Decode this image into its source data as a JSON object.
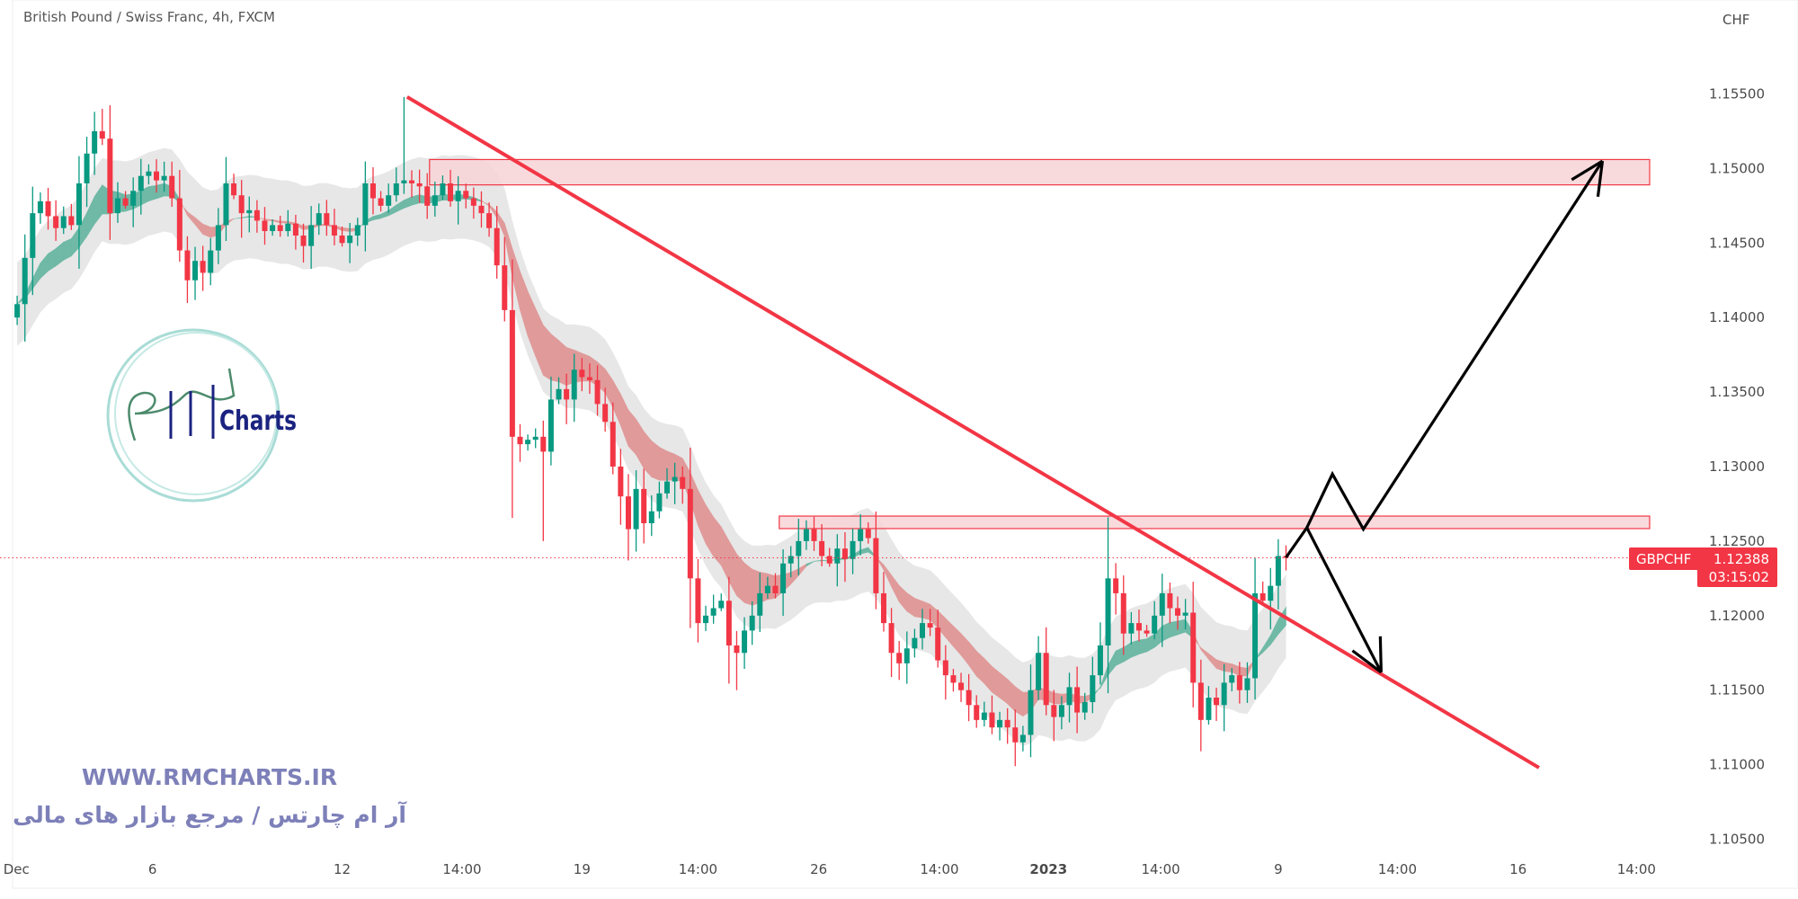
{
  "header": {
    "title": "British Pound / Swiss Franc, 4h, FXCM",
    "currency": "CHF"
  },
  "price_label": {
    "symbol": "GBPCHF",
    "price": "1.12388",
    "countdown": "03:15:02"
  },
  "watermark": {
    "logo_text": "RM Charts",
    "logo_word": "Charts",
    "website": "WWW.RMCHARTS.IR",
    "tagline": "آر ام چارتس / مرجع بازار های مالی"
  },
  "colors": {
    "up": "#089981",
    "down": "#f23645",
    "trendline": "#f23645",
    "zone_fill": "#f8d3d6",
    "zone_border": "#f23645",
    "arrows": "#000000",
    "ribbon_up": "#6fb9a6",
    "ribbon_down": "#e09a9a",
    "envelope": "#e3e3e3"
  },
  "chart_data": {
    "type": "candlestick",
    "title": "British Pound / Swiss Franc, 4h, FXCM",
    "ylabel": "CHF",
    "ylim": [
      1.1035,
      1.1595
    ],
    "y_ticks": [
      "1.15500",
      "1.15000",
      "1.14500",
      "1.14000",
      "1.13500",
      "1.13000",
      "1.12500",
      "1.12000",
      "1.11500",
      "1.11000",
      "1.10500"
    ],
    "x_ticks": [
      {
        "label": "Dec",
        "index": -0.1,
        "bold": false
      },
      {
        "label": "6",
        "index": 17.5,
        "bold": false
      },
      {
        "label": "12",
        "index": 42,
        "bold": false
      },
      {
        "label": "14:00",
        "index": 57.5,
        "bold": false
      },
      {
        "label": "19",
        "index": 73,
        "bold": false
      },
      {
        "label": "14:00",
        "index": 88,
        "bold": false
      },
      {
        "label": "26",
        "index": 103.6,
        "bold": false
      },
      {
        "label": "14:00",
        "index": 119.2,
        "bold": false
      },
      {
        "label": "2023",
        "index": 133.3,
        "bold": true
      },
      {
        "label": "14:00",
        "index": 147.8,
        "bold": false
      },
      {
        "label": "9",
        "index": 163,
        "bold": false
      },
      {
        "label": "14:00",
        "index": 178.4,
        "bold": false
      },
      {
        "label": "16",
        "index": 194,
        "bold": false
      },
      {
        "label": "14:00",
        "index": 209.3,
        "bold": false
      }
    ],
    "close": [
      1.1409,
      1.144,
      1.147,
      1.1478,
      1.1468,
      1.146,
      1.1468,
      1.1462,
      1.149,
      1.151,
      1.1525,
      1.152,
      1.147,
      1.148,
      1.1475,
      1.1485,
      1.1495,
      1.1498,
      1.1492,
      1.1495,
      1.148,
      1.1445,
      1.1425,
      1.1438,
      1.143,
      1.1445,
      1.1462,
      1.149,
      1.1482,
      1.147,
      1.1472,
      1.1465,
      1.1458,
      1.1462,
      1.1458,
      1.1463,
      1.1455,
      1.1448,
      1.1462,
      1.147,
      1.1462,
      1.1455,
      1.145,
      1.1455,
      1.1462,
      1.149,
      1.148,
      1.1475,
      1.1482,
      1.149,
      1.1492,
      1.149,
      1.1488,
      1.1475,
      1.1482,
      1.149,
      1.1478,
      1.1485,
      1.148,
      1.1475,
      1.147,
      1.146,
      1.1435,
      1.1405,
      1.132,
      1.1315,
      1.1318,
      1.132,
      1.131,
      1.1345,
      1.1352,
      1.1345,
      1.1365,
      1.136,
      1.1358,
      1.1342,
      1.133,
      1.13,
      1.128,
      1.1258,
      1.1285,
      1.1262,
      1.127,
      1.1282,
      1.129,
      1.1293,
      1.1285,
      1.1225,
      1.1195,
      1.12,
      1.1205,
      1.121,
      1.118,
      1.1175,
      1.119,
      1.12,
      1.1215,
      1.122,
      1.1215,
      1.1235,
      1.124,
      1.125,
      1.1258,
      1.125,
      1.124,
      1.1235,
      1.1245,
      1.1238,
      1.125,
      1.1258,
      1.1252,
      1.1215,
      1.1195,
      1.1175,
      1.1168,
      1.1178,
      1.1185,
      1.1195,
      1.1192,
      1.117,
      1.116,
      1.1155,
      1.115,
      1.114,
      1.113,
      1.1135,
      1.1125,
      1.113,
      1.1125,
      1.1115,
      1.112,
      1.115,
      1.1175,
      1.114,
      1.1132,
      1.114,
      1.1152,
      1.1135,
      1.1142,
      1.116,
      1.118,
      1.1225,
      1.1215,
      1.1188,
      1.1195,
      1.119,
      1.1188,
      1.12,
      1.1215,
      1.1205,
      1.12,
      1.1202,
      1.1155,
      1.113,
      1.1145,
      1.114,
      1.1155,
      1.116,
      1.115,
      1.1158,
      1.1215,
      1.121,
      1.122,
      1.124,
      1.12388
    ],
    "first_open": 1.14,
    "wick_extremes": [
      {
        "index": 0,
        "low": 1.1395
      },
      {
        "index": 10,
        "high": 1.1538
      },
      {
        "index": 11,
        "high": 1.154
      },
      {
        "index": 50,
        "high": 1.1548
      },
      {
        "index": 68,
        "low": 1.125
      },
      {
        "index": 93,
        "low": 1.115
      },
      {
        "index": 101,
        "high": 1.1265
      },
      {
        "index": 109,
        "high": 1.1268
      },
      {
        "index": 129,
        "low": 1.1099
      },
      {
        "index": 131,
        "low": 1.1105
      },
      {
        "index": 141,
        "high": 1.1266
      },
      {
        "index": 153,
        "low": 1.1109
      }
    ],
    "zones": [
      {
        "from_index": 53.3,
        "to_index": 211,
        "top": 1.1506,
        "bottom": 1.1489
      },
      {
        "from_index": 98.5,
        "to_index": 211,
        "top": 1.12668,
        "bottom": 1.12584
      }
    ],
    "trendline": [
      {
        "index": 50.4,
        "price": 1.1548
      },
      {
        "index": 196.7,
        "price": 1.1098
      }
    ],
    "arrow_up_path": [
      {
        "index": 164,
        "price": 1.1239
      },
      {
        "index": 166.7,
        "price": 1.1259
      },
      {
        "index": 170,
        "price": 1.1295
      },
      {
        "index": 174,
        "price": 1.1258
      },
      {
        "index": 204.9,
        "price": 1.1505
      }
    ],
    "arrow_down_path": [
      {
        "index": 166.7,
        "price": 1.1259
      },
      {
        "index": 176.3,
        "price": 1.1162
      }
    ],
    "last_price": 1.12388
  }
}
